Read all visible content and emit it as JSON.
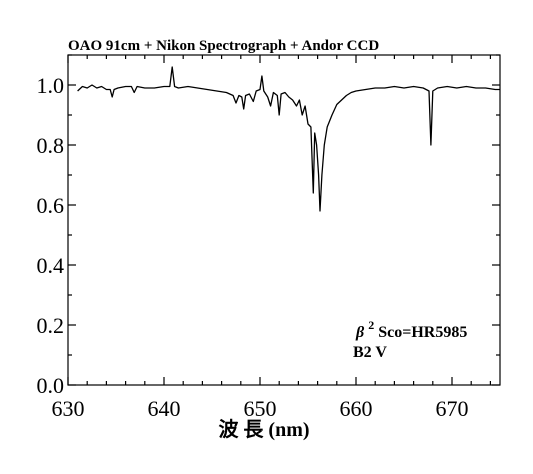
{
  "chart_data": {
    "type": "line",
    "title": "OAO 91cm + Nikon Spectrograph + Andor CCD",
    "xlabel": "波 長 (nm)",
    "ylabel": "",
    "xlim": [
      630,
      675
    ],
    "ylim": [
      0.0,
      1.1
    ],
    "xticks": [
      630,
      640,
      650,
      660,
      670
    ],
    "yticks": [
      "0.0",
      "0.2",
      "0.4",
      "0.6",
      "0.8",
      "1.0"
    ],
    "grid": false,
    "annotation": {
      "star_greek": "β",
      "star_sup": "2",
      "star_rest": "Sco=HR5985",
      "spectral_type": "B2 V"
    },
    "series": [
      {
        "values": [
          [
            631.0,
            0.98
          ],
          [
            631.5,
            0.995
          ],
          [
            632.0,
            0.99
          ],
          [
            632.5,
            1.0
          ],
          [
            633.0,
            0.99
          ],
          [
            633.5,
            0.995
          ],
          [
            634.0,
            0.985
          ],
          [
            634.4,
            0.985
          ],
          [
            634.6,
            0.96
          ],
          [
            634.8,
            0.985
          ],
          [
            635.2,
            0.99
          ],
          [
            636.0,
            0.995
          ],
          [
            636.6,
            0.995
          ],
          [
            636.9,
            0.975
          ],
          [
            637.2,
            0.995
          ],
          [
            638.0,
            0.99
          ],
          [
            639.0,
            0.99
          ],
          [
            640.0,
            0.995
          ],
          [
            640.6,
            0.995
          ],
          [
            640.85,
            1.06
          ],
          [
            641.1,
            0.995
          ],
          [
            641.5,
            0.99
          ],
          [
            642.5,
            0.995
          ],
          [
            643.5,
            0.99
          ],
          [
            644.5,
            0.985
          ],
          [
            645.5,
            0.98
          ],
          [
            646.5,
            0.975
          ],
          [
            647.2,
            0.965
          ],
          [
            647.5,
            0.94
          ],
          [
            647.8,
            0.965
          ],
          [
            648.1,
            0.96
          ],
          [
            648.3,
            0.92
          ],
          [
            648.5,
            0.965
          ],
          [
            648.9,
            0.97
          ],
          [
            649.3,
            0.945
          ],
          [
            649.6,
            0.98
          ],
          [
            650.0,
            0.985
          ],
          [
            650.2,
            1.03
          ],
          [
            650.4,
            0.98
          ],
          [
            650.8,
            0.96
          ],
          [
            651.1,
            0.93
          ],
          [
            651.4,
            0.975
          ],
          [
            651.8,
            0.965
          ],
          [
            652.0,
            0.9
          ],
          [
            652.2,
            0.97
          ],
          [
            652.6,
            0.975
          ],
          [
            653.0,
            0.96
          ],
          [
            653.4,
            0.95
          ],
          [
            653.8,
            0.93
          ],
          [
            654.1,
            0.95
          ],
          [
            654.4,
            0.9
          ],
          [
            654.7,
            0.93
          ],
          [
            655.0,
            0.87
          ],
          [
            655.3,
            0.86
          ],
          [
            655.55,
            0.64
          ],
          [
            655.7,
            0.84
          ],
          [
            655.9,
            0.8
          ],
          [
            656.1,
            0.7
          ],
          [
            656.25,
            0.58
          ],
          [
            656.45,
            0.7
          ],
          [
            656.7,
            0.8
          ],
          [
            657.0,
            0.86
          ],
          [
            657.5,
            0.9
          ],
          [
            658.0,
            0.935
          ],
          [
            658.5,
            0.95
          ],
          [
            659.0,
            0.965
          ],
          [
            659.5,
            0.975
          ],
          [
            660.0,
            0.98
          ],
          [
            661.0,
            0.985
          ],
          [
            662.0,
            0.99
          ],
          [
            663.0,
            0.99
          ],
          [
            664.0,
            0.995
          ],
          [
            665.0,
            0.99
          ],
          [
            666.0,
            0.995
          ],
          [
            667.0,
            0.99
          ],
          [
            667.6,
            0.98
          ],
          [
            667.8,
            0.8
          ],
          [
            668.0,
            0.98
          ],
          [
            668.5,
            0.99
          ],
          [
            669.5,
            0.995
          ],
          [
            670.5,
            0.99
          ],
          [
            671.5,
            0.995
          ],
          [
            672.5,
            0.99
          ],
          [
            673.5,
            0.99
          ],
          [
            674.5,
            0.985
          ],
          [
            675.0,
            0.985
          ]
        ]
      }
    ]
  }
}
